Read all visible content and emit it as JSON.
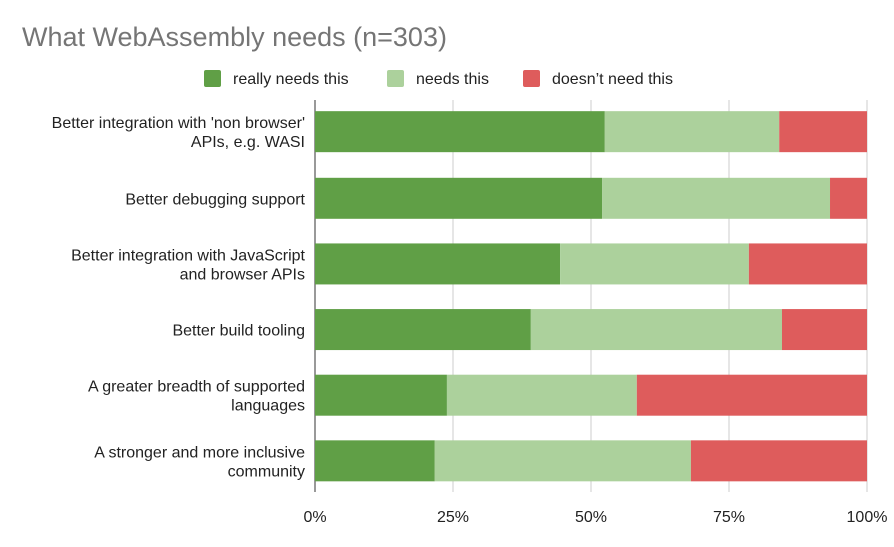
{
  "chart_data": {
    "type": "bar",
    "orientation": "horizontal",
    "stacked": "percent",
    "title": "What WebAssembly needs (n=303)",
    "categories": [
      [
        "Better integration with 'non browser'",
        "APIs, e.g. WASI"
      ],
      [
        "Better debugging support"
      ],
      [
        "Better integration with JavaScript",
        "and browser APIs"
      ],
      [
        "Better build tooling"
      ],
      [
        "A greater breadth of supported",
        "languages"
      ],
      [
        "A stronger and more inclusive",
        "community"
      ]
    ],
    "series": [
      {
        "name": "really needs this",
        "color": "#609f46",
        "values": [
          52.5,
          52.0,
          44.4,
          39.1,
          23.9,
          21.7
        ]
      },
      {
        "name": "needs this",
        "color": "#acd19c",
        "values": [
          31.6,
          41.3,
          34.2,
          45.5,
          34.4,
          46.4
        ]
      },
      {
        "name": "doesn’t need this",
        "color": "#de5c5c",
        "values": [
          15.9,
          6.7,
          21.4,
          15.4,
          41.7,
          31.9
        ]
      }
    ],
    "xlim": [
      0,
      100
    ],
    "xticks": [
      "0%",
      "25%",
      "50%",
      "75%",
      "100%"
    ],
    "grid": true,
    "legend": "top"
  }
}
